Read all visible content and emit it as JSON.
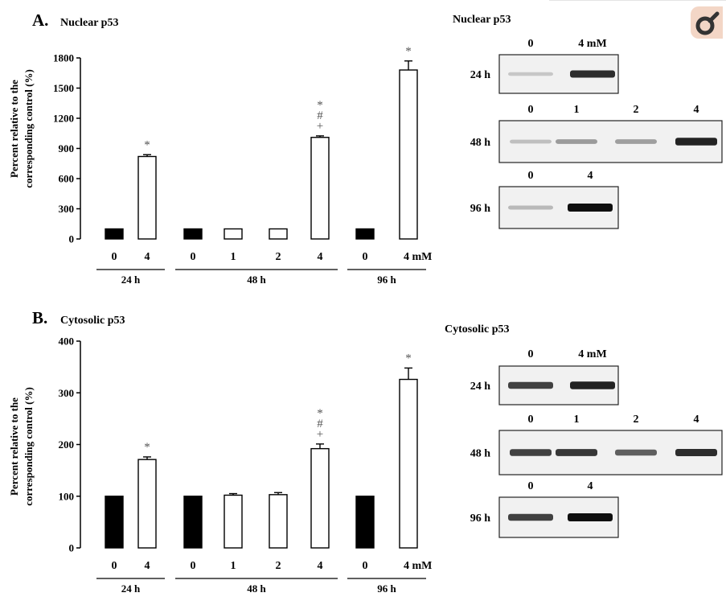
{
  "chart_data": [
    {
      "type": "bar",
      "panel": "A.",
      "title": "Nuclear p53",
      "ylabel_line1": "Percent relative to the",
      "ylabel_line2": "corresponding control (%)",
      "ylim": [
        0,
        1800
      ],
      "yticks": [
        "0",
        "300",
        "600",
        "900",
        "1200",
        "1500",
        "1800"
      ],
      "categories": [
        "0",
        "4",
        "0",
        "1",
        "2",
        "4",
        "0",
        "4 mM"
      ],
      "values": [
        100,
        820,
        100,
        100,
        100,
        1010,
        100,
        1680
      ],
      "errors": [
        0,
        18,
        0,
        0,
        0,
        15,
        0,
        90
      ],
      "fill": [
        "black",
        "white",
        "black",
        "white",
        "white",
        "white",
        "black",
        "white"
      ],
      "significance": [
        "",
        "*",
        "",
        "",
        "",
        "*\n#\n+",
        "",
        "*"
      ],
      "groups": [
        {
          "label": "24 h",
          "from": 0,
          "to": 1
        },
        {
          "label": "48 h",
          "from": 2,
          "to": 5
        },
        {
          "label": "96 h",
          "from": 6,
          "to": 7
        }
      ]
    },
    {
      "type": "bar",
      "panel": "B.",
      "title": "Cytosolic p53",
      "ylabel_line1": "Percent relative to the",
      "ylabel_line2": "corresponding control (%)",
      "ylim": [
        0,
        400
      ],
      "yticks": [
        "0",
        "100",
        "200",
        "300",
        "400"
      ],
      "categories": [
        "0",
        "4",
        "0",
        "1",
        "2",
        "4",
        "0",
        "4 mM"
      ],
      "values": [
        100,
        171,
        100,
        102,
        103,
        192,
        100,
        326
      ],
      "errors": [
        0,
        5,
        0,
        3,
        4,
        9,
        0,
        22
      ],
      "fill": [
        "black",
        "white",
        "black",
        "white",
        "white",
        "white",
        "black",
        "white"
      ],
      "significance": [
        "",
        "*",
        "",
        "",
        "",
        "*\n#\n+",
        "",
        "*"
      ],
      "groups": [
        {
          "label": "24 h",
          "from": 0,
          "to": 1
        },
        {
          "label": "48 h",
          "from": 2,
          "to": 5
        },
        {
          "label": "96 h",
          "from": 6,
          "to": 7
        }
      ]
    }
  ],
  "blots": [
    {
      "title": "Nuclear p53",
      "rows": [
        {
          "time": "24 h",
          "lanes": [
            "0",
            "4 mM"
          ],
          "intensity": [
            0.08,
            0.85
          ]
        },
        {
          "time": "48 h",
          "lanes": [
            "0",
            "1",
            "2",
            "4"
          ],
          "intensity": [
            0.12,
            0.3,
            0.28,
            0.9
          ]
        },
        {
          "time": "96 h",
          "lanes": [
            "0",
            "4"
          ],
          "intensity": [
            0.15,
            1.0
          ]
        }
      ]
    },
    {
      "title": "Cytosolic p53",
      "rows": [
        {
          "time": "24 h",
          "lanes": [
            "0",
            "4 mM"
          ],
          "intensity": [
            0.75,
            0.9
          ]
        },
        {
          "time": "48 h",
          "lanes": [
            "0",
            "1",
            "2",
            "4"
          ],
          "intensity": [
            0.75,
            0.8,
            0.6,
            0.85
          ]
        },
        {
          "time": "96 h",
          "lanes": [
            "0",
            "4"
          ],
          "intensity": [
            0.75,
            1.0
          ]
        }
      ]
    }
  ]
}
